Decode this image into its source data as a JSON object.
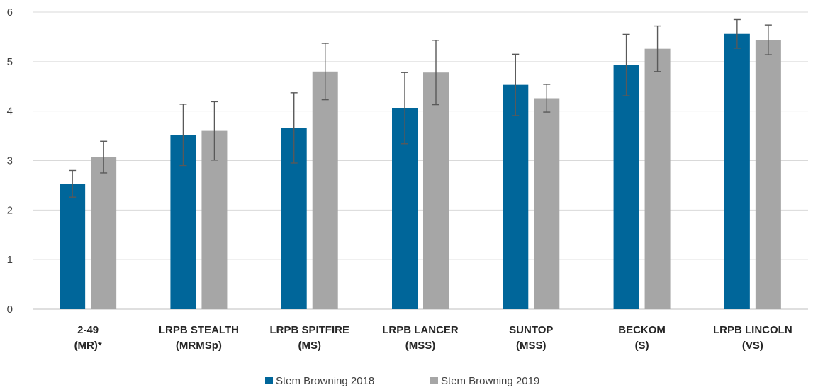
{
  "chart_data": {
    "type": "bar",
    "title": "",
    "xlabel": "",
    "ylabel": "",
    "ylim": [
      0,
      6
    ],
    "yticks": [
      0,
      1,
      2,
      3,
      4,
      5,
      6
    ],
    "grid": "horizontal",
    "legend_position": "bottom",
    "categories": [
      [
        "2-49",
        "(MR)*"
      ],
      [
        "LRPB STEALTH",
        "(MRMSp)"
      ],
      [
        "LRPB SPITFIRE",
        "(MS)"
      ],
      [
        "LRPB LANCER",
        "(MSS)"
      ],
      [
        "SUNTOP",
        "(MSS)"
      ],
      [
        "BECKOM",
        "(S)"
      ],
      [
        "LRPB LINCOLN",
        "(VS)"
      ]
    ],
    "series": [
      {
        "name": "Stem Browning 2018",
        "color": "#00669a",
        "values": [
          2.53,
          3.52,
          3.66,
          4.06,
          4.53,
          4.93,
          5.56
        ],
        "error": [
          0.27,
          0.62,
          0.71,
          0.72,
          0.62,
          0.62,
          0.29
        ]
      },
      {
        "name": "Stem Browning 2019",
        "color": "#a6a6a6",
        "values": [
          3.07,
          3.6,
          4.8,
          4.78,
          4.26,
          5.26,
          5.44
        ],
        "error": [
          0.32,
          0.59,
          0.57,
          0.65,
          0.28,
          0.46,
          0.3
        ]
      }
    ]
  }
}
